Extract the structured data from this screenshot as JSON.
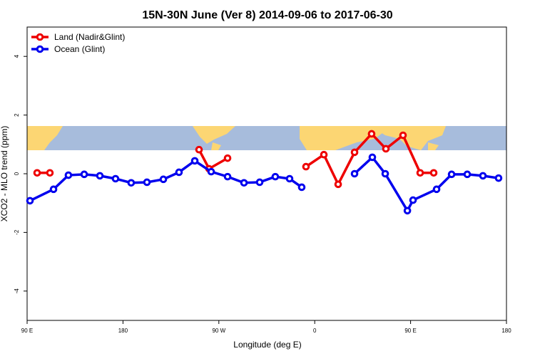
{
  "chart_data": {
    "type": "line",
    "title": "15N-30N June (Ver 8)   2014-09-06 to 2017-06-30",
    "x_label": "Longitude (deg E)",
    "y_label": "XCO2 - MLO trend (ppm)",
    "xlim": [
      90,
      540
    ],
    "ylim": [
      -5,
      5
    ],
    "xticks": [
      {
        "value": 90,
        "label": "90 E"
      },
      {
        "value": 180,
        "label": "180"
      },
      {
        "value": 270,
        "label": "90 W"
      },
      {
        "value": 360,
        "label": "0"
      },
      {
        "value": 450,
        "label": "90 E"
      },
      {
        "value": 540,
        "label": "180"
      }
    ],
    "yticks": [
      -4,
      -2,
      0,
      2,
      4
    ],
    "legend": "top-left",
    "series": [
      {
        "name": "Land (Nadir&Glint)",
        "color": "#ee0000",
        "x": [
          99.4,
          111.4,
          null,
          251.4,
          260.8,
          278.2,
          null,
          351.8,
          368.6,
          382,
          397.4,
          413.4,
          426.8,
          442.9,
          459,
          471.7
        ],
        "values": [
          0.03,
          0.03,
          null,
          0.82,
          0.17,
          0.53,
          null,
          0.24,
          0.65,
          -0.36,
          0.73,
          1.36,
          0.85,
          1.31,
          0.03,
          0.03
        ]
      },
      {
        "name": "Ocean (Glint)",
        "color": "#0000ee",
        "x": [
          92.7,
          114.8,
          128.8,
          143.6,
          158.3,
          173,
          187.7,
          202.5,
          217.9,
          232.6,
          247.4,
          262.8,
          278.2,
          293.6,
          308.3,
          323,
          336.4,
          347.8,
          null,
          397.4,
          414.1,
          426.2,
          447,
          452.3,
          474.4,
          488.5,
          503.2,
          517.9,
          532.6
        ],
        "values": [
          -0.92,
          -0.53,
          -0.05,
          -0.02,
          -0.07,
          -0.17,
          -0.31,
          -0.29,
          -0.19,
          0.05,
          0.44,
          0.07,
          -0.1,
          -0.31,
          -0.29,
          -0.1,
          -0.17,
          -0.46,
          null,
          0.0,
          0.56,
          0.0,
          -1.26,
          -0.9,
          -0.53,
          -0.02,
          -0.02,
          -0.07,
          -0.15
        ]
      }
    ]
  }
}
